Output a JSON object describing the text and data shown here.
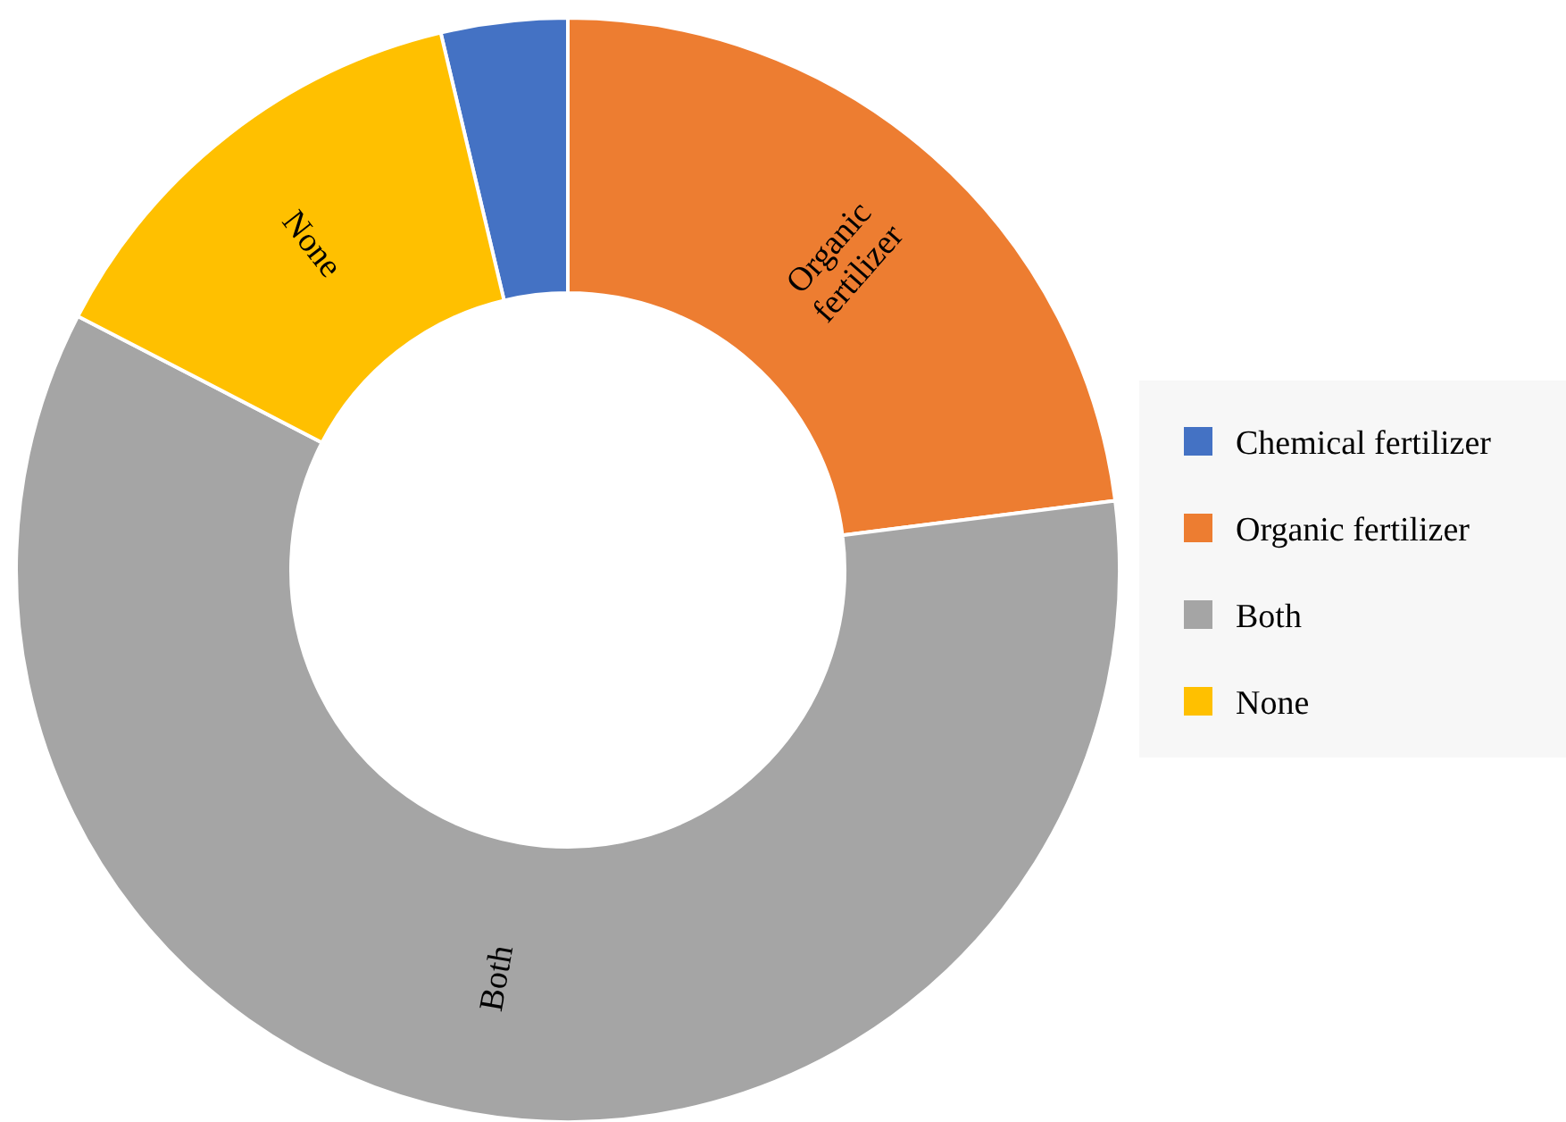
{
  "chart_data": {
    "type": "donut",
    "categories": [
      "Chemical fertilizer",
      "Organic fertilizer",
      "Both",
      "None"
    ],
    "values": [
      3.7,
      23.0,
      59.6,
      13.7
    ],
    "colors": [
      "#4472c4",
      "#ed7d31",
      "#a5a5a5",
      "#ffc000"
    ],
    "legend": "right",
    "annotations": [
      {
        "text": "None",
        "x": "None"
      },
      {
        "text": "Organic fertilizer",
        "x": "Organic fertilizer"
      },
      {
        "text": "Both",
        "x": "Both"
      }
    ]
  }
}
